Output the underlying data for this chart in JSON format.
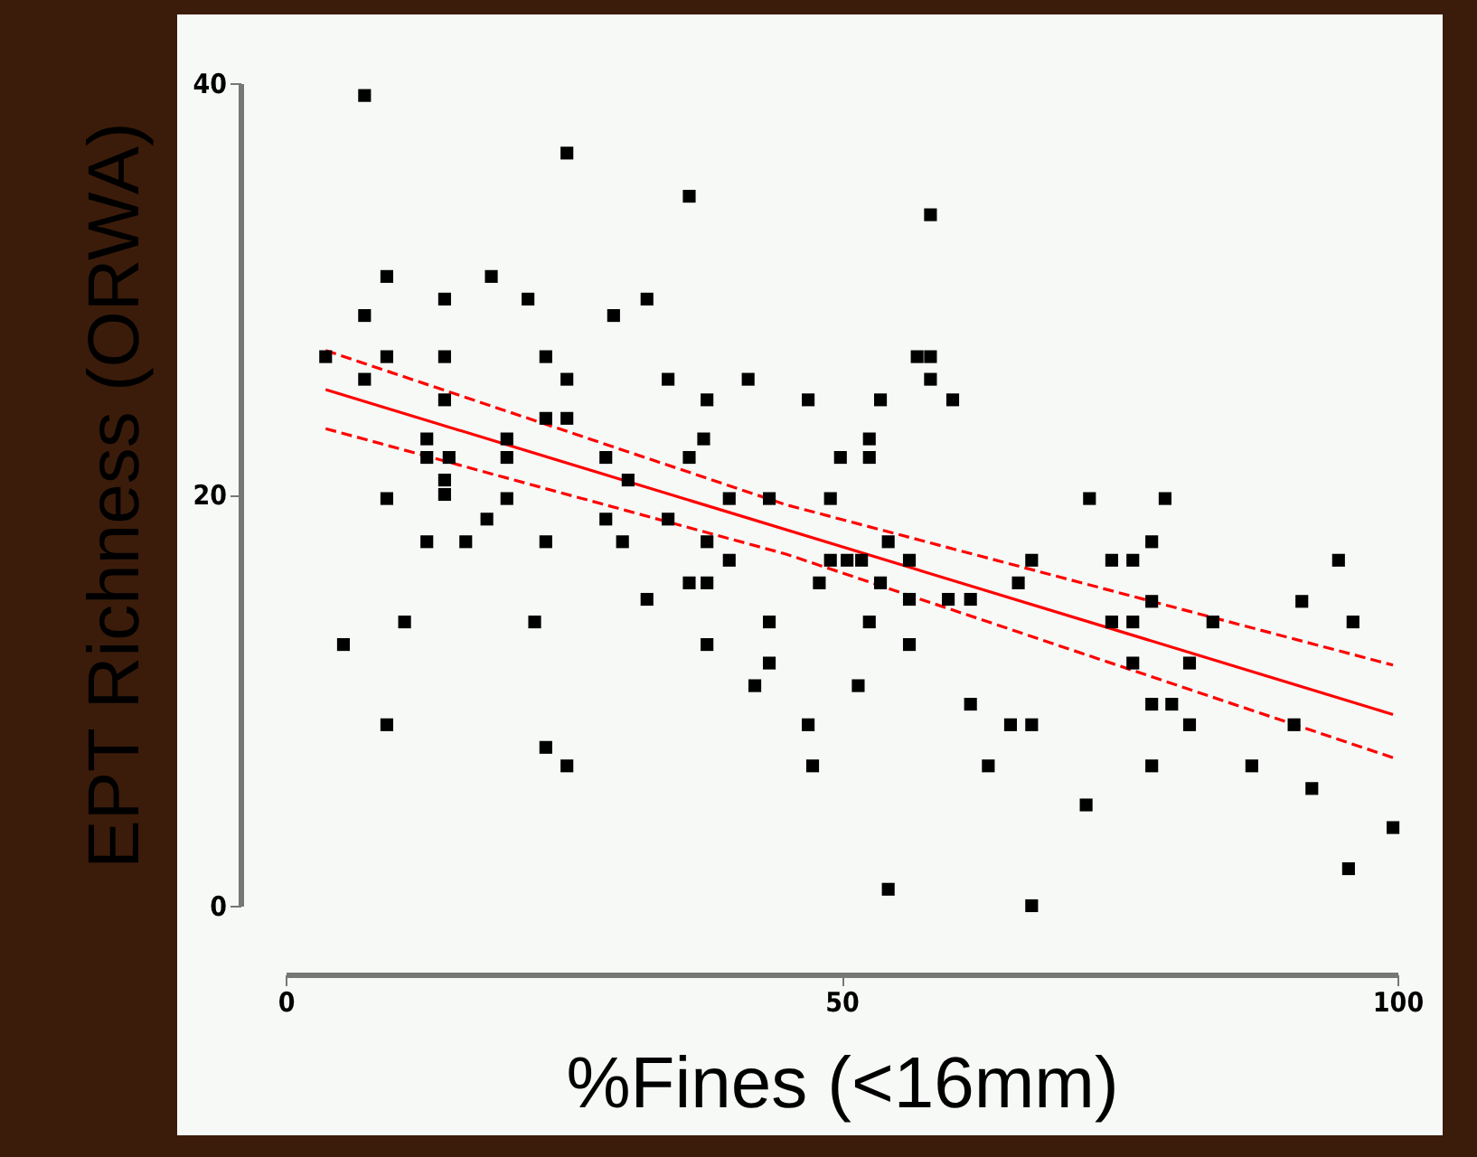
{
  "chart_data": {
    "type": "scatter",
    "xlabel": "%Fines (<16mm)",
    "ylabel": "EPT Richness (ORWA)",
    "xlim": [
      0,
      100
    ],
    "ylim": [
      0,
      40
    ],
    "xticks": [
      0,
      50,
      100
    ],
    "yticks": [
      0,
      20,
      40
    ],
    "grid": false,
    "series": [
      {
        "type": "scatter",
        "color": "#000000",
        "marker": "square",
        "x": [
          7.1,
          25.3,
          9.1,
          18.5,
          14.3,
          21.8,
          7.1,
          29.5,
          3.6,
          9.1,
          14.3,
          23.4,
          7.1,
          25.3,
          14.3,
          23.4,
          25.3,
          12.7,
          12.7,
          14.7,
          14.3,
          14.3,
          19.9,
          19.9,
          28.8,
          9.1,
          19.9,
          18.1,
          28.8,
          12.7,
          16.2,
          23.4,
          30.3,
          10.7,
          22.4,
          5.2,
          9.1,
          23.4,
          25.3,
          36.3,
          58.0,
          32.5,
          34.4,
          41.6,
          37.9,
          47.0,
          53.5,
          60.0,
          56.8,
          58.0,
          58.0,
          37.6,
          36.3,
          49.9,
          52.5,
          52.5,
          30.8,
          34.4,
          39.9,
          43.5,
          49.0,
          37.9,
          39.9,
          49.0,
          50.5,
          51.8,
          54.2,
          56.1,
          67.1,
          36.3,
          37.9,
          48.0,
          53.5,
          65.9,
          32.5,
          56.1,
          59.6,
          61.6,
          43.5,
          52.5,
          37.9,
          56.1,
          43.5,
          42.2,
          51.5,
          61.6,
          47.0,
          65.2,
          67.1,
          47.4,
          63.2,
          54.2,
          67.1,
          72.3,
          79.1,
          77.9,
          74.3,
          76.2,
          94.7,
          77.9,
          91.4,
          74.3,
          76.2,
          83.4,
          96.0,
          76.2,
          81.3,
          77.9,
          79.7,
          81.3,
          90.7,
          77.9,
          86.9,
          92.3,
          72.0,
          99.6,
          95.6
        ],
        "values": [
          39.4,
          36.6,
          30.6,
          30.6,
          29.5,
          29.5,
          28.7,
          28.7,
          26.7,
          26.7,
          26.7,
          26.7,
          25.6,
          25.6,
          24.6,
          23.7,
          23.7,
          22.7,
          21.8,
          21.8,
          20.7,
          20.0,
          22.7,
          21.8,
          21.8,
          19.8,
          19.8,
          18.8,
          18.8,
          17.7,
          17.7,
          17.7,
          17.7,
          13.8,
          13.8,
          12.7,
          8.8,
          7.7,
          6.8,
          34.5,
          33.6,
          29.5,
          25.6,
          25.6,
          24.6,
          24.6,
          24.6,
          24.6,
          26.7,
          26.7,
          25.6,
          22.7,
          21.8,
          21.8,
          22.7,
          21.8,
          20.7,
          18.8,
          19.8,
          19.8,
          19.8,
          17.7,
          16.8,
          16.8,
          16.8,
          16.8,
          17.7,
          16.8,
          16.8,
          15.7,
          15.7,
          15.7,
          15.7,
          15.7,
          14.9,
          14.9,
          14.9,
          14.9,
          13.8,
          13.8,
          12.7,
          12.7,
          11.8,
          10.7,
          10.7,
          9.8,
          8.8,
          8.8,
          8.8,
          6.8,
          6.8,
          0.8,
          0,
          19.8,
          19.8,
          17.7,
          16.8,
          16.8,
          16.8,
          14.8,
          14.8,
          13.8,
          13.8,
          13.8,
          13.8,
          11.8,
          11.8,
          9.8,
          9.8,
          8.8,
          8.8,
          6.8,
          6.8,
          5.7,
          4.9,
          3.8,
          1.8
        ]
      },
      {
        "type": "line",
        "color": "#ff0000",
        "marker": "none",
        "line_style": "solid",
        "x": [
          3.6,
          99.6
        ],
        "values": [
          25.1,
          9.3
        ]
      },
      {
        "type": "line",
        "color": "#ff0000",
        "marker": "none",
        "line_style": "dashed",
        "x": [
          3.6,
          45,
          99.6
        ],
        "values": [
          27.0,
          19.5,
          11.7
        ]
      },
      {
        "type": "line",
        "color": "#ff0000",
        "marker": "none",
        "line_style": "dashed",
        "x": [
          3.6,
          45,
          99.6
        ],
        "values": [
          23.2,
          17.1,
          7.2
        ]
      }
    ]
  }
}
